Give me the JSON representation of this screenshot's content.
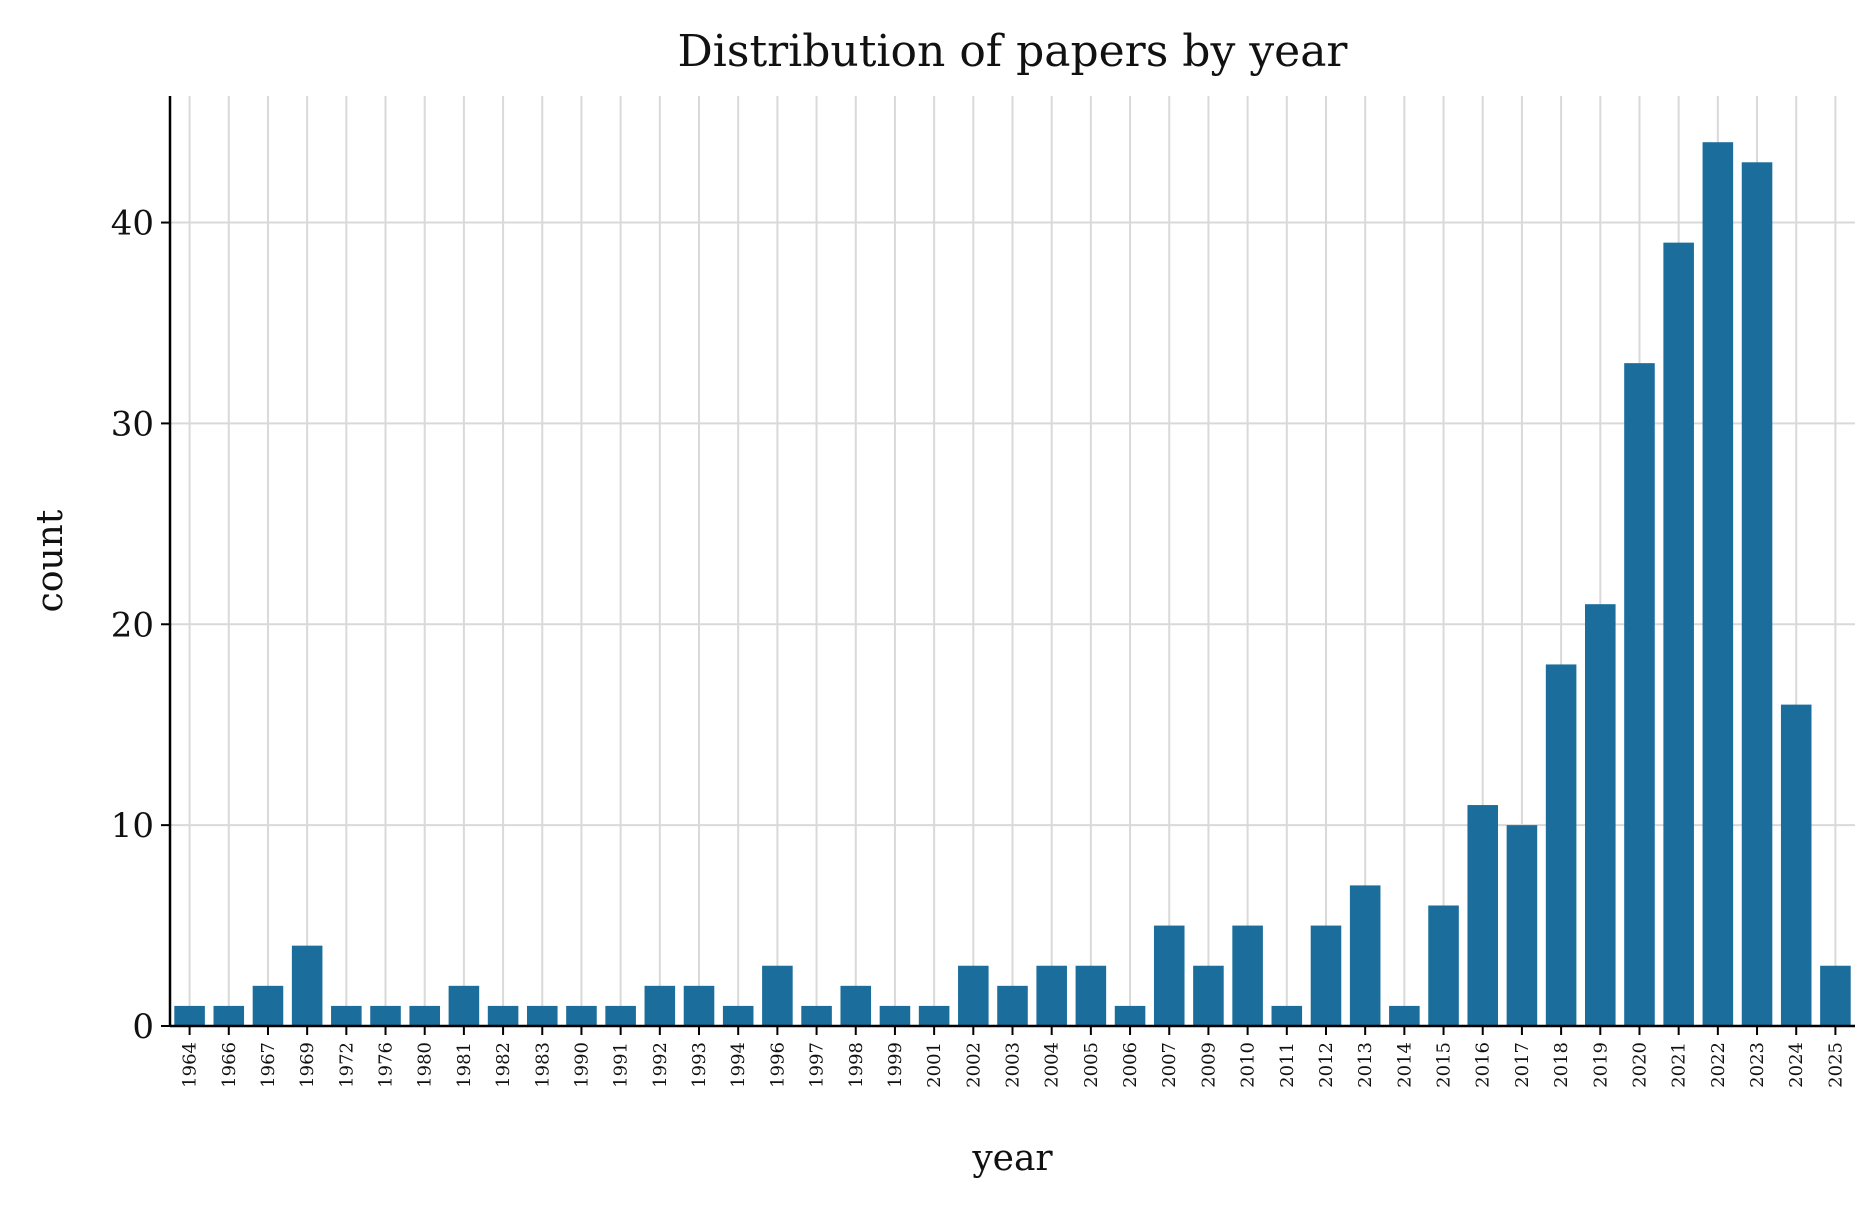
{
  "chart_data": {
    "type": "bar",
    "title": "Distribution of papers by year",
    "xlabel": "year",
    "ylabel": "count",
    "categories": [
      "1964",
      "1966",
      "1967",
      "1969",
      "1972",
      "1976",
      "1980",
      "1981",
      "1982",
      "1983",
      "1990",
      "1991",
      "1992",
      "1993",
      "1994",
      "1996",
      "1997",
      "1998",
      "1999",
      "2001",
      "2002",
      "2003",
      "2004",
      "2005",
      "2006",
      "2007",
      "2009",
      "2010",
      "2011",
      "2012",
      "2013",
      "2014",
      "2015",
      "2016",
      "2017",
      "2018",
      "2019",
      "2020",
      "2021",
      "2022",
      "2023",
      "2024",
      "2025"
    ],
    "values": [
      1,
      1,
      2,
      4,
      1,
      1,
      1,
      2,
      1,
      1,
      1,
      1,
      2,
      2,
      1,
      3,
      1,
      2,
      1,
      1,
      3,
      2,
      3,
      3,
      1,
      5,
      3,
      5,
      1,
      5,
      7,
      1,
      6,
      11,
      10,
      18,
      21,
      33,
      39,
      44,
      43,
      16,
      3
    ],
    "yticks": [
      0,
      10,
      20,
      30,
      40
    ],
    "ylim": [
      0,
      46.3
    ],
    "grid": true,
    "bar_color": "#1b6e9c",
    "grid_color": "#d9d9d9"
  }
}
